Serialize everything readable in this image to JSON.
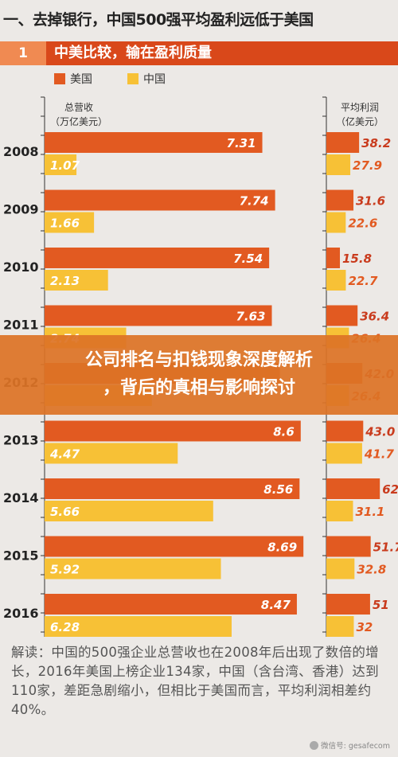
{
  "page": {
    "title": "一、去掉银行，中国500强平均盈利远低于美国",
    "section_number": "1",
    "section_title": "中美比较，输在盈利质量"
  },
  "overlay": {
    "line1": "公司排名与扣钱现象深度解析",
    "line2": "，背后的真相与影响探讨"
  },
  "note": "解读：中国的500强企业总营收也在2008年后出现了数倍的增长，2016年美国上榜企业134家，中国（含台湾、香港）达到110家，差距急剧缩小，但相比于美国而言，平均利润相差约40%。",
  "watermark": "微信号: gesafecom",
  "colors": {
    "us": "#e25a21",
    "china": "#f7c136",
    "dark_red": "#c93b1d"
  },
  "chart_data": [
    {
      "type": "bar",
      "orientation": "horizontal",
      "title": "总营收（万亿美元）",
      "categories": [
        "2008",
        "2009",
        "2010",
        "2011",
        "2012",
        "2013",
        "2014",
        "2015",
        "2016"
      ],
      "series": [
        {
          "name": "美国",
          "values": [
            7.31,
            7.74,
            7.54,
            7.63,
            7.9,
            8.6,
            8.56,
            8.69,
            8.47
          ],
          "labels": [
            "7.31",
            "7.74",
            "7.54",
            "7.63",
            "",
            "8.6",
            "8.56",
            "8.69",
            "8.47"
          ]
        },
        {
          "name": "中国",
          "values": [
            1.07,
            1.66,
            2.13,
            2.74,
            3.6,
            4.47,
            5.66,
            5.92,
            6.28
          ],
          "labels": [
            "1.07",
            "1.66",
            "2.13",
            "2.74",
            "",
            "4.47",
            "5.66",
            "5.92",
            "6.28"
          ]
        }
      ],
      "xlim": [
        0,
        9.3
      ],
      "grid": false
    },
    {
      "type": "bar",
      "orientation": "horizontal",
      "title": "平均利润（亿美元）",
      "categories": [
        "2008",
        "2009",
        "2010",
        "2011",
        "2012",
        "2013",
        "2014",
        "2015",
        "2016"
      ],
      "series": [
        {
          "name": "美国",
          "values": [
            38.2,
            31.6,
            15.8,
            36.4,
            42.0,
            43.0,
            62.4,
            51.7,
            51
          ],
          "labels": [
            "38.2",
            "31.6",
            "15.8",
            "36.4",
            "42.0",
            "43.0",
            "62.4",
            "51.7",
            "51"
          ]
        },
        {
          "name": "中国",
          "values": [
            27.9,
            22.6,
            22.7,
            26.4,
            26.4,
            41.7,
            31.1,
            32.8,
            32
          ],
          "labels": [
            "27.9",
            "22.6",
            "22.7",
            "26.4",
            "26.4",
            "41.7",
            "31.1",
            "32.8",
            "32"
          ]
        }
      ],
      "xlim": [
        0,
        78
      ],
      "grid": false
    }
  ]
}
